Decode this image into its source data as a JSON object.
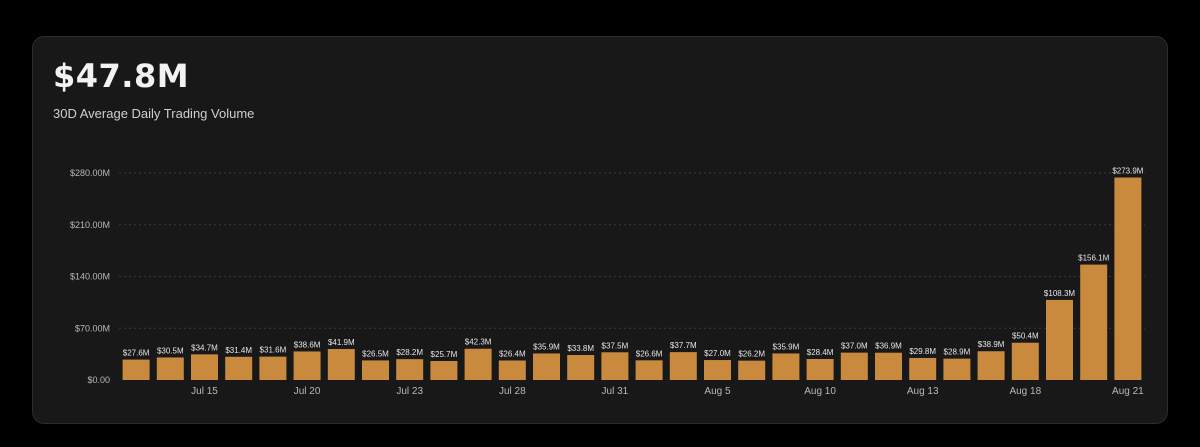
{
  "header": {
    "value": "$47.8M",
    "subtitle": "30D Average Daily Trading Volume"
  },
  "colors": {
    "bar": "#c98a3e",
    "background": "#181818"
  },
  "chart_data": {
    "type": "bar",
    "title": "",
    "xlabel": "",
    "ylabel": "",
    "ylim": [
      0,
      280
    ],
    "grid": true,
    "y_ticks": [
      {
        "value": 0,
        "label": "$0.00"
      },
      {
        "value": 70,
        "label": "$70.00M"
      },
      {
        "value": 140,
        "label": "$140.00M"
      },
      {
        "value": 210,
        "label": "$210.00M"
      },
      {
        "value": 280,
        "label": "$280.00M"
      }
    ],
    "x_tick_labels": [
      {
        "index": 2,
        "label": "Jul 15"
      },
      {
        "index": 5,
        "label": "Jul 20"
      },
      {
        "index": 8,
        "label": "Jul 23"
      },
      {
        "index": 11,
        "label": "Jul 28"
      },
      {
        "index": 14,
        "label": "Jul 31"
      },
      {
        "index": 17,
        "label": "Aug 5"
      },
      {
        "index": 20,
        "label": "Aug 10"
      },
      {
        "index": 23,
        "label": "Aug 13"
      },
      {
        "index": 26,
        "label": "Aug 18"
      },
      {
        "index": 29,
        "label": "Aug 21"
      }
    ],
    "values": [
      27.6,
      30.5,
      34.7,
      31.4,
      31.6,
      38.6,
      41.9,
      26.5,
      28.2,
      25.7,
      42.3,
      26.4,
      35.9,
      33.8,
      37.5,
      26.6,
      37.7,
      27.0,
      26.2,
      35.9,
      28.4,
      37.0,
      36.9,
      29.8,
      28.9,
      38.9,
      50.4,
      108.3,
      156.1,
      273.9
    ],
    "value_labels": [
      "$27.6M",
      "$30.5M",
      "$34.7M",
      "$31.4M",
      "$31.6M",
      "$38.6M",
      "$41.9M",
      "$26.5M",
      "$28.2M",
      "$25.7M",
      "$42.3M",
      "$26.4M",
      "$35.9M",
      "$33.8M",
      "$37.5M",
      "$26.6M",
      "$37.7M",
      "$27.0M",
      "$26.2M",
      "$35.9M",
      "$28.4M",
      "$37.0M",
      "$36.9M",
      "$29.8M",
      "$28.9M",
      "$38.9M",
      "$50.4M",
      "$108.3M",
      "$156.1M",
      "$273.9M"
    ]
  }
}
